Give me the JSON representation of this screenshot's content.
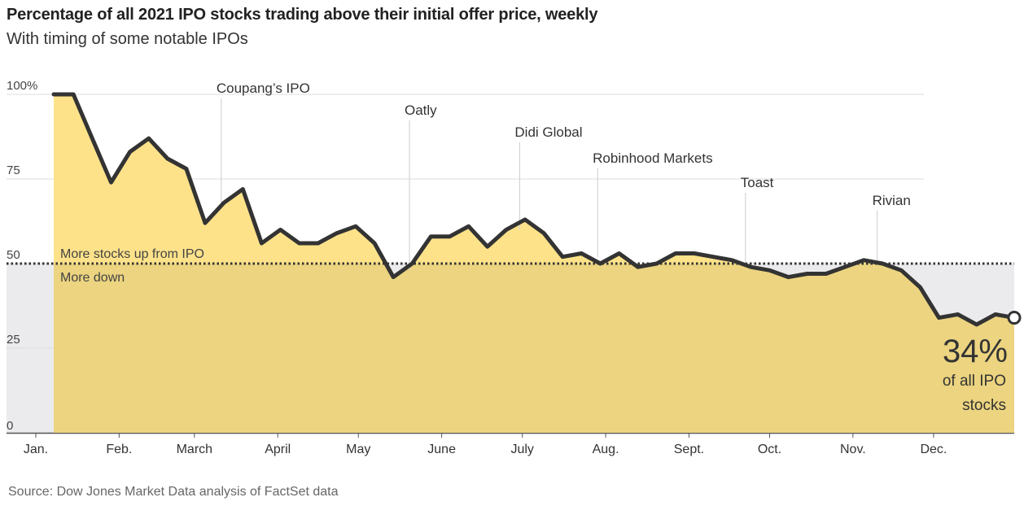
{
  "title": "Percentage of all 2021 IPO stocks trading above their initial offer price, weekly",
  "subtitle": "With timing of some notable IPOs",
  "source": "Source: Dow Jones Market Data analysis of FactSet data",
  "colors": {
    "line": "#333333",
    "fill_above": "#fde28a",
    "fill_below": "#ecd480",
    "background_shade": "#ebebee",
    "reference_line": "#333333"
  },
  "chart_data": {
    "type": "area",
    "title": "Percentage of all 2021 IPO stocks trading above their initial offer price, weekly",
    "xlabel": "",
    "ylabel": "",
    "ylim": [
      0,
      100
    ],
    "grid": true,
    "y_ticks": [
      {
        "value": 0,
        "label": "0"
      },
      {
        "value": 25,
        "label": "25"
      },
      {
        "value": 50,
        "label": "50"
      },
      {
        "value": 75,
        "label": "75"
      },
      {
        "value": 100,
        "label": "100%"
      }
    ],
    "x_ticks": [
      {
        "month": 1,
        "label": "Jan."
      },
      {
        "month": 2,
        "label": "Feb."
      },
      {
        "month": 3,
        "label": "March"
      },
      {
        "month": 4,
        "label": "April"
      },
      {
        "month": 5,
        "label": "May"
      },
      {
        "month": 6,
        "label": "June"
      },
      {
        "month": 7,
        "label": "July"
      },
      {
        "month": 8,
        "label": "Aug."
      },
      {
        "month": 9,
        "label": "Sept."
      },
      {
        "month": 10,
        "label": "Oct."
      },
      {
        "month": 11,
        "label": "Nov."
      },
      {
        "month": 12,
        "label": "Dec."
      }
    ],
    "reference_line": {
      "value": 50,
      "label_above": "More stocks up from IPO",
      "label_below": "More down"
    },
    "series": [
      {
        "points": [
          {
            "date": "2021-01-08",
            "value": 100
          },
          {
            "date": "2021-01-15",
            "value": 100
          },
          {
            "date": "2021-01-22",
            "value": 87
          },
          {
            "date": "2021-01-29",
            "value": 74
          },
          {
            "date": "2021-02-05",
            "value": 83
          },
          {
            "date": "2021-02-12",
            "value": 87
          },
          {
            "date": "2021-02-19",
            "value": 81
          },
          {
            "date": "2021-02-26",
            "value": 78
          },
          {
            "date": "2021-03-05",
            "value": 62
          },
          {
            "date": "2021-03-12",
            "value": 68
          },
          {
            "date": "2021-03-19",
            "value": 72
          },
          {
            "date": "2021-03-26",
            "value": 56
          },
          {
            "date": "2021-04-02",
            "value": 60
          },
          {
            "date": "2021-04-09",
            "value": 56
          },
          {
            "date": "2021-04-16",
            "value": 56
          },
          {
            "date": "2021-04-23",
            "value": 59
          },
          {
            "date": "2021-04-30",
            "value": 61
          },
          {
            "date": "2021-05-07",
            "value": 56
          },
          {
            "date": "2021-05-14",
            "value": 46
          },
          {
            "date": "2021-05-21",
            "value": 50
          },
          {
            "date": "2021-05-28",
            "value": 58
          },
          {
            "date": "2021-06-04",
            "value": 58
          },
          {
            "date": "2021-06-11",
            "value": 61
          },
          {
            "date": "2021-06-18",
            "value": 55
          },
          {
            "date": "2021-06-25",
            "value": 60
          },
          {
            "date": "2021-07-02",
            "value": 63
          },
          {
            "date": "2021-07-09",
            "value": 59
          },
          {
            "date": "2021-07-16",
            "value": 52
          },
          {
            "date": "2021-07-23",
            "value": 53
          },
          {
            "date": "2021-07-30",
            "value": 50
          },
          {
            "date": "2021-08-06",
            "value": 53
          },
          {
            "date": "2021-08-13",
            "value": 49
          },
          {
            "date": "2021-08-20",
            "value": 50
          },
          {
            "date": "2021-08-27",
            "value": 53
          },
          {
            "date": "2021-09-03",
            "value": 53
          },
          {
            "date": "2021-09-10",
            "value": 52
          },
          {
            "date": "2021-09-17",
            "value": 51
          },
          {
            "date": "2021-09-24",
            "value": 49
          },
          {
            "date": "2021-10-01",
            "value": 48
          },
          {
            "date": "2021-10-08",
            "value": 46
          },
          {
            "date": "2021-10-15",
            "value": 47
          },
          {
            "date": "2021-10-22",
            "value": 47
          },
          {
            "date": "2021-10-29",
            "value": 49
          },
          {
            "date": "2021-11-05",
            "value": 51
          },
          {
            "date": "2021-11-12",
            "value": 50
          },
          {
            "date": "2021-11-19",
            "value": 48
          },
          {
            "date": "2021-11-26",
            "value": 43
          },
          {
            "date": "2021-12-03",
            "value": 34
          },
          {
            "date": "2021-12-10",
            "value": 35
          },
          {
            "date": "2021-12-17",
            "value": 32
          },
          {
            "date": "2021-12-24",
            "value": 35
          },
          {
            "date": "2021-12-31",
            "value": 34
          }
        ]
      }
    ],
    "annotations": [
      {
        "label": "Coupang’s IPO",
        "date": "2021-03-11",
        "value": 67
      },
      {
        "label": "Oatly",
        "date": "2021-05-20",
        "value": 48
      },
      {
        "label": "Didi Global",
        "date": "2021-06-30",
        "value": 60
      },
      {
        "label": "Robinhood Markets",
        "date": "2021-07-29",
        "value": 52
      },
      {
        "label": "Toast",
        "date": "2021-09-22",
        "value": 50
      },
      {
        "label": "Rivian",
        "date": "2021-11-10",
        "value": 51
      }
    ],
    "end_label": {
      "value_text": "34%",
      "line1": "of all IPO",
      "line2": "stocks"
    }
  }
}
